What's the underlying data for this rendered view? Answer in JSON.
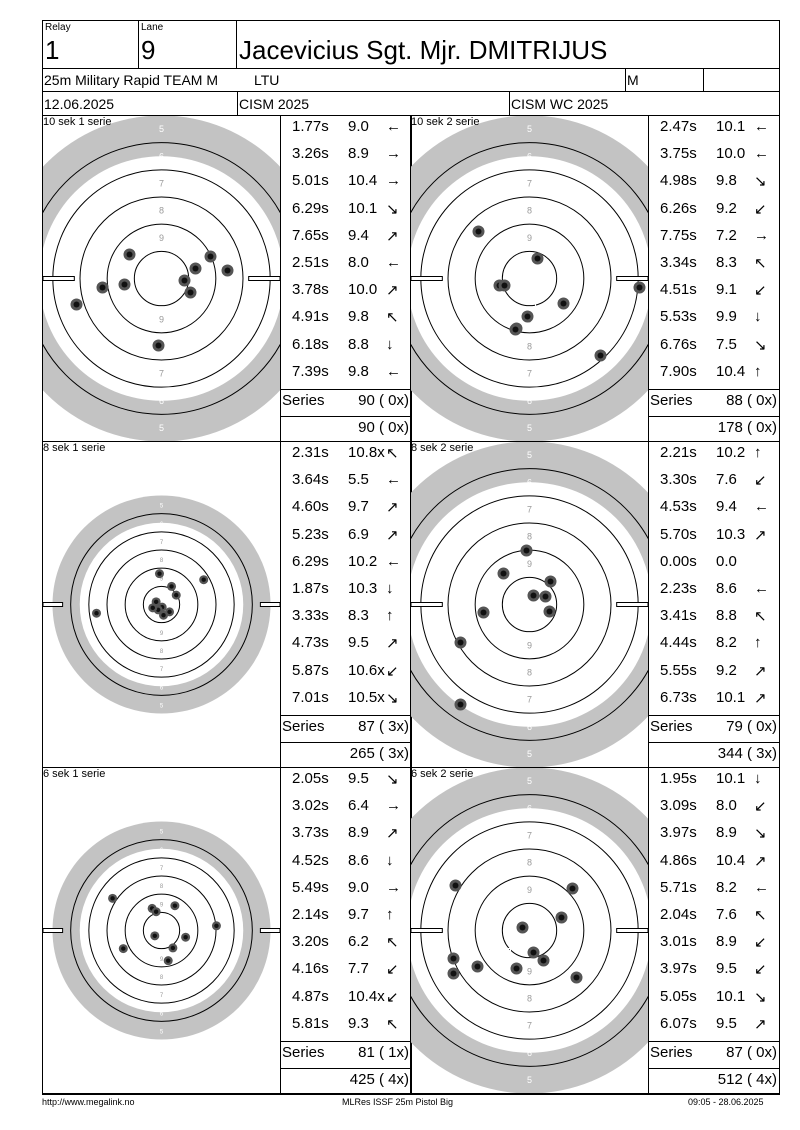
{
  "header": {
    "relay_label": "Relay",
    "relay_value": "1",
    "lane_label": "Lane",
    "lane_value": "9",
    "shooter_name": "Jacevicius Sgt. Mjr. DMITRIJUS",
    "event": "25m Military Rapid TEAM M",
    "team": "LTU",
    "gender": "M",
    "date": "12.06.2025",
    "competition": "CISM 2025",
    "match": "CISM WC 2025"
  },
  "panels": [
    {
      "title": "10 sek 1 serie",
      "target_size": "large",
      "shots": [
        {
          "time": "1.77s",
          "score": "9.0",
          "dir": "←"
        },
        {
          "time": "3.26s",
          "score": "8.9",
          "dir": "→"
        },
        {
          "time": "5.01s",
          "score": "10.4",
          "dir": "→"
        },
        {
          "time": "6.29s",
          "score": "10.1",
          "dir": "↘"
        },
        {
          "time": "7.65s",
          "score": "9.4",
          "dir": "↗"
        },
        {
          "time": "2.51s",
          "score": "8.0",
          "dir": "←"
        },
        {
          "time": "3.78s",
          "score": "10.0",
          "dir": "↗"
        },
        {
          "time": "4.91s",
          "score": "9.8",
          "dir": "↖"
        },
        {
          "time": "6.18s",
          "score": "8.8",
          "dir": "↓"
        },
        {
          "time": "7.39s",
          "score": "9.8",
          "dir": "←"
        }
      ],
      "series_label": "Series",
      "series_total": "90 ( 0x)",
      "running_total": "90 ( 0x)"
    },
    {
      "title": "10 sek 2 serie",
      "target_size": "large",
      "shots": [
        {
          "time": "2.47s",
          "score": "10.1",
          "dir": "←"
        },
        {
          "time": "3.75s",
          "score": "10.0",
          "dir": "←"
        },
        {
          "time": "4.98s",
          "score": "9.8",
          "dir": "↘"
        },
        {
          "time": "6.26s",
          "score": "9.2",
          "dir": "↙"
        },
        {
          "time": "7.75s",
          "score": "7.2",
          "dir": "→"
        },
        {
          "time": "3.34s",
          "score": "8.3",
          "dir": "↖"
        },
        {
          "time": "4.51s",
          "score": "9.1",
          "dir": "↙"
        },
        {
          "time": "5.53s",
          "score": "9.9",
          "dir": "↓"
        },
        {
          "time": "6.76s",
          "score": "7.5",
          "dir": "↘"
        },
        {
          "time": "7.90s",
          "score": "10.4",
          "dir": "↑"
        }
      ],
      "series_label": "Series",
      "series_total": "88 ( 0x)",
      "running_total": "178 ( 0x)"
    },
    {
      "title": "8 sek 1 serie",
      "target_size": "small",
      "shots": [
        {
          "time": "2.31s",
          "score": "10.8x",
          "dir": "↖"
        },
        {
          "time": "3.64s",
          "score": "5.5",
          "dir": "←"
        },
        {
          "time": "4.60s",
          "score": "9.7",
          "dir": "↗"
        },
        {
          "time": "5.23s",
          "score": "6.9",
          "dir": "↗"
        },
        {
          "time": "6.29s",
          "score": "10.2",
          "dir": "←"
        },
        {
          "time": "1.87s",
          "score": "10.3",
          "dir": "↓"
        },
        {
          "time": "3.33s",
          "score": "8.3",
          "dir": "↑"
        },
        {
          "time": "4.73s",
          "score": "9.5",
          "dir": "↗"
        },
        {
          "time": "5.87s",
          "score": "10.6x",
          "dir": "↙"
        },
        {
          "time": "7.01s",
          "score": "10.5x",
          "dir": "↘"
        }
      ],
      "series_label": "Series",
      "series_total": "87 ( 3x)",
      "running_total": "265 ( 3x)"
    },
    {
      "title": "8 sek 2 serie",
      "target_size": "large",
      "shots": [
        {
          "time": "2.21s",
          "score": "10.2",
          "dir": "↑"
        },
        {
          "time": "3.30s",
          "score": "7.6",
          "dir": "↙"
        },
        {
          "time": "4.53s",
          "score": "9.4",
          "dir": "←"
        },
        {
          "time": "5.70s",
          "score": "10.3",
          "dir": "↗"
        },
        {
          "time": "0.00s",
          "score": "0.0",
          "dir": ""
        },
        {
          "time": "2.23s",
          "score": "8.6",
          "dir": "←"
        },
        {
          "time": "3.41s",
          "score": "8.8",
          "dir": "↖"
        },
        {
          "time": "4.44s",
          "score": "8.2",
          "dir": "↑"
        },
        {
          "time": "5.55s",
          "score": "9.2",
          "dir": "↗"
        },
        {
          "time": "6.73s",
          "score": "10.1",
          "dir": "↗"
        }
      ],
      "series_label": "Series",
      "series_total": "79 ( 0x)",
      "running_total": "344 ( 3x)"
    },
    {
      "title": "6 sek 1 serie",
      "target_size": "small",
      "shots": [
        {
          "time": "2.05s",
          "score": "9.5",
          "dir": "↘"
        },
        {
          "time": "3.02s",
          "score": "6.4",
          "dir": "→"
        },
        {
          "time": "3.73s",
          "score": "8.9",
          "dir": "↗"
        },
        {
          "time": "4.52s",
          "score": "8.6",
          "dir": "↓"
        },
        {
          "time": "5.49s",
          "score": "9.0",
          "dir": "→"
        },
        {
          "time": "2.14s",
          "score": "9.7",
          "dir": "↑"
        },
        {
          "time": "3.20s",
          "score": "6.2",
          "dir": "↖"
        },
        {
          "time": "4.16s",
          "score": "7.7",
          "dir": "↙"
        },
        {
          "time": "4.87s",
          "score": "10.4x",
          "dir": "↙"
        },
        {
          "time": "5.81s",
          "score": "9.3",
          "dir": "↖"
        }
      ],
      "series_label": "Series",
      "series_total": "81 ( 1x)",
      "running_total": "425 ( 4x)"
    },
    {
      "title": "6 sek 2 serie",
      "target_size": "large",
      "shots": [
        {
          "time": "1.95s",
          "score": "10.1",
          "dir": "↓"
        },
        {
          "time": "3.09s",
          "score": "8.0",
          "dir": "↙"
        },
        {
          "time": "3.97s",
          "score": "8.9",
          "dir": "↘"
        },
        {
          "time": "4.86s",
          "score": "10.4",
          "dir": "↗"
        },
        {
          "time": "5.71s",
          "score": "8.2",
          "dir": "←"
        },
        {
          "time": "2.04s",
          "score": "7.6",
          "dir": "↖"
        },
        {
          "time": "3.01s",
          "score": "8.9",
          "dir": "↙"
        },
        {
          "time": "3.97s",
          "score": "9.5",
          "dir": "↙"
        },
        {
          "time": "5.05s",
          "score": "10.1",
          "dir": "↘"
        },
        {
          "time": "6.07s",
          "score": "9.5",
          "dir": "↗"
        }
      ],
      "series_label": "Series",
      "series_total": "87 ( 0x)",
      "running_total": "512 ( 4x)"
    }
  ],
  "ring_numbers_large": [
    "5",
    "6",
    "7",
    "8",
    "9"
  ],
  "footer": {
    "left": "http://www.megalink.no",
    "center": "MLRes ISSF 25m Pistol Big",
    "right": "09:05 - 28.06.2025"
  },
  "colors": {
    "target_gray": "#c3c3c3",
    "ring_line": "#000000",
    "hole": "#333333"
  }
}
